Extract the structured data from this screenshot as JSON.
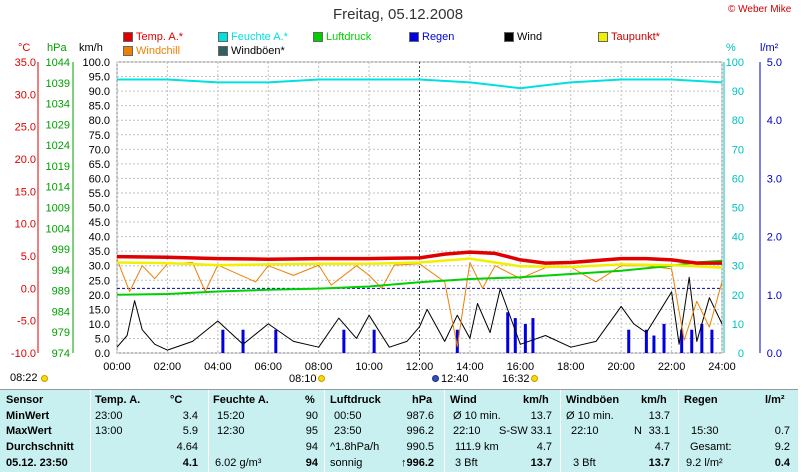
{
  "header": {
    "title": "Freitag, 05.12.2008",
    "credit": "© Weber Mike",
    "legend": [
      {
        "label": "Temp. A.*",
        "color": "#e00000"
      },
      {
        "label": "Feuchte A.*",
        "color": "#00e0e0"
      },
      {
        "label": "Luftdruck",
        "color": "#00d000"
      },
      {
        "label": "Regen",
        "color": "#0000e0"
      },
      {
        "label": "Wind",
        "color": "#000000"
      },
      {
        "label": "Taupunkt*",
        "color": "#f0f000"
      },
      {
        "label": "Windchill",
        "color": "#f08000"
      },
      {
        "label": "Windböen*",
        "color": "#306060"
      }
    ]
  },
  "axes": {
    "temp": {
      "unit": "°C",
      "ticks": [
        "35.0",
        "30.0",
        "25.0",
        "20.0",
        "15.0",
        "10.0",
        "5.0",
        "0.0",
        "-5.0",
        "-10.0"
      ],
      "color": "#e00000"
    },
    "pressure": {
      "unit": "hPa",
      "ticks": [
        "1044",
        "1039",
        "1034",
        "1029",
        "1024",
        "1019",
        "1014",
        "1009",
        "1004",
        "999",
        "994",
        "989",
        "984",
        "979",
        "974"
      ],
      "color": "#00a000"
    },
    "wind": {
      "unit": "km/h",
      "ticks": [
        "100.0",
        "95.0",
        "90.0",
        "85.0",
        "80.0",
        "75.0",
        "70.0",
        "65.0",
        "60.0",
        "55.0",
        "50.0",
        "45.0",
        "40.0",
        "35.0",
        "30.0",
        "25.0",
        "20.0",
        "15.0",
        "10.0",
        "5.0",
        "0.0"
      ]
    },
    "humidity": {
      "unit": "%",
      "ticks": [
        "100",
        "90",
        "80",
        "70",
        "60",
        "50",
        "40",
        "30",
        "20",
        "10",
        "0"
      ],
      "color": "#00c0c0"
    },
    "rain": {
      "unit": "l/m²",
      "ticks": [
        "5.0",
        "4.0",
        "3.0",
        "2.0",
        "1.0",
        "0.0"
      ],
      "color": "#0000c0"
    },
    "time": [
      "00:00",
      "02:00",
      "04:00",
      "06:00",
      "08:00",
      "10:00",
      "12:00",
      "14:00",
      "16:00",
      "18:00",
      "20:00",
      "22:00",
      "24:00"
    ]
  },
  "events": {
    "sunrise": "08:22",
    "daylight_start": "08:10",
    "noon": "12:40",
    "sunset": "16:32"
  },
  "chart_data": {
    "type": "line",
    "x_unit": "hours",
    "xlim": [
      0,
      24
    ],
    "series": [
      {
        "name": "Temp. A.*",
        "unit": "°C",
        "x": [
          0,
          2,
          4,
          6,
          8,
          10,
          12,
          13,
          14,
          15,
          16,
          17,
          18,
          20,
          21,
          22,
          23,
          24
        ],
        "values": [
          4.9,
          4.8,
          4.6,
          4.5,
          4.6,
          4.6,
          4.7,
          5.3,
          5.6,
          5.4,
          4.4,
          3.9,
          4.0,
          4.6,
          4.6,
          4.4,
          3.9,
          3.9
        ]
      },
      {
        "name": "Feuchte A.*",
        "unit": "%",
        "x": [
          0,
          2,
          4,
          6,
          8,
          10,
          12,
          14,
          15,
          16,
          17,
          18,
          20,
          22,
          24
        ],
        "values": [
          94,
          94,
          93,
          93,
          94,
          94,
          94,
          93,
          92,
          91,
          92,
          93,
          94,
          94,
          93
        ]
      },
      {
        "name": "Luftdruck",
        "unit": "hPa",
        "x": [
          0,
          2,
          4,
          6,
          8,
          10,
          12,
          14,
          16,
          18,
          20,
          22,
          23,
          24
        ],
        "values": [
          988.0,
          988.2,
          988.8,
          989.2,
          989.5,
          990.0,
          991.0,
          991.8,
          992.2,
          993.0,
          993.8,
          995.0,
          995.8,
          996.2
        ]
      },
      {
        "name": "Taupunkt*",
        "unit": "°C",
        "x": [
          0,
          2,
          4,
          6,
          8,
          10,
          12,
          14,
          16,
          18,
          20,
          22,
          24
        ],
        "values": [
          4.0,
          3.9,
          3.6,
          3.7,
          3.8,
          3.8,
          4.0,
          4.6,
          3.4,
          3.3,
          3.7,
          3.6,
          3.2
        ]
      },
      {
        "name": "Windchill",
        "unit": "°C",
        "x": [
          0,
          0.5,
          1,
          1.5,
          2,
          3,
          3.5,
          4,
          5.5,
          6,
          7,
          8,
          8.5,
          9.5,
          10,
          10.5,
          11,
          12,
          13,
          13.5,
          14,
          14.5,
          15,
          16,
          17,
          18,
          19,
          20,
          21,
          22,
          22.5,
          23,
          23.5,
          24
        ],
        "values": [
          4.5,
          -0.5,
          3.5,
          1.5,
          3.8,
          4.0,
          -0.5,
          3.6,
          1.0,
          3.5,
          2.0,
          3.6,
          0.5,
          3.5,
          2.0,
          0.0,
          3.6,
          3.8,
          1.0,
          -9.0,
          4.0,
          0.0,
          3.5,
          1.5,
          3.2,
          3.3,
          1.0,
          3.5,
          3.5,
          3.0,
          -8.0,
          -2.0,
          -6.0,
          1.0
        ]
      },
      {
        "name": "Wind",
        "unit": "km/h",
        "x": [
          0,
          0.4,
          0.7,
          1,
          1.5,
          2,
          3,
          4,
          5,
          6,
          7,
          8,
          8.8,
          9.5,
          10,
          10.8,
          11.5,
          12,
          12.3,
          13,
          13.5,
          14,
          14.3,
          14.8,
          15.2,
          16,
          17,
          18,
          19,
          20,
          20.5,
          21,
          21.5,
          22,
          22.3,
          22.7,
          23,
          23.5,
          24
        ],
        "values": [
          2,
          6,
          18,
          8,
          3,
          1,
          4,
          11,
          3,
          10,
          4,
          2,
          12,
          5,
          13,
          2,
          4,
          9,
          15,
          4,
          13,
          5,
          17,
          7,
          22,
          3,
          6,
          2,
          4,
          16,
          10,
          7,
          14,
          21,
          3,
          26,
          4,
          19,
          10
        ]
      },
      {
        "name": "Regen",
        "unit": "l/m²",
        "x": [
          4.2,
          5,
          6.3,
          9,
          10.2,
          13.5,
          15.5,
          15.8,
          16.2,
          16.5,
          20.3,
          21,
          21.3,
          21.7,
          22.4,
          22.8,
          23.2,
          23.6
        ],
        "values": [
          0.4,
          0.4,
          0.4,
          0.4,
          0.4,
          0.4,
          0.7,
          0.6,
          0.5,
          0.6,
          0.4,
          0.4,
          0.3,
          0.5,
          0.4,
          0.4,
          0.5,
          0.4
        ]
      }
    ],
    "ylim_temp": [
      -10,
      35
    ],
    "ylim_humidity": [
      0,
      100
    ],
    "ylim_pressure": [
      974,
      1044
    ],
    "ylim_wind": [
      0,
      100
    ],
    "ylim_rain": [
      0,
      5
    ],
    "grid": true
  },
  "stats": {
    "row_labels": [
      "Sensor",
      "MinWert",
      "MaxWert",
      "Durchschnitt",
      "05.12. 23:50"
    ],
    "temp": {
      "header": "Temp. A.",
      "unit": "°C",
      "cells": [
        [
          "23:00",
          "3.4"
        ],
        [
          "13:00",
          "5.9"
        ],
        [
          "",
          "4.64"
        ],
        [
          "",
          "4.1"
        ]
      ]
    },
    "hum": {
      "header": "Feuchte A.",
      "unit": "%",
      "cells": [
        [
          "15:20",
          "90"
        ],
        [
          "12:30",
          "95"
        ],
        [
          "",
          "94"
        ],
        [
          "6.02 g/m³",
          "94"
        ]
      ]
    },
    "press": {
      "header": "Luftdruck",
      "unit": "hPa",
      "cells": [
        [
          "00:50",
          "987.6"
        ],
        [
          "23:50",
          "996.2"
        ],
        [
          "^1.8hPa/h",
          "990.5"
        ],
        [
          "sonnig",
          "↑996.2"
        ]
      ]
    },
    "wind": {
      "header": "Wind",
      "unit": "km/h",
      "cells": [
        [
          "Ø 10 min.",
          "",
          "13.7"
        ],
        [
          "22:10",
          "S-SW",
          "33.1"
        ],
        [
          "111.9 km",
          "",
          "4.7"
        ],
        [
          "3 Bft",
          "",
          "13.7"
        ]
      ]
    },
    "gust": {
      "header": "Windböen",
      "unit": "km/h",
      "cells": [
        [
          "Ø 10 min.",
          "",
          "13.7"
        ],
        [
          "22:10",
          "N",
          "33.1"
        ],
        [
          "",
          "",
          "4.7"
        ],
        [
          "3 Bft",
          "",
          "13.7"
        ]
      ]
    },
    "rain": {
      "header": "Regen",
      "unit": "l/m²",
      "cells": [
        [
          "",
          ""
        ],
        [
          "15:30",
          "0.7"
        ],
        [
          "Gesamt:",
          "9.2"
        ],
        [
          "9.2 l/m²",
          "0.4"
        ]
      ]
    }
  }
}
